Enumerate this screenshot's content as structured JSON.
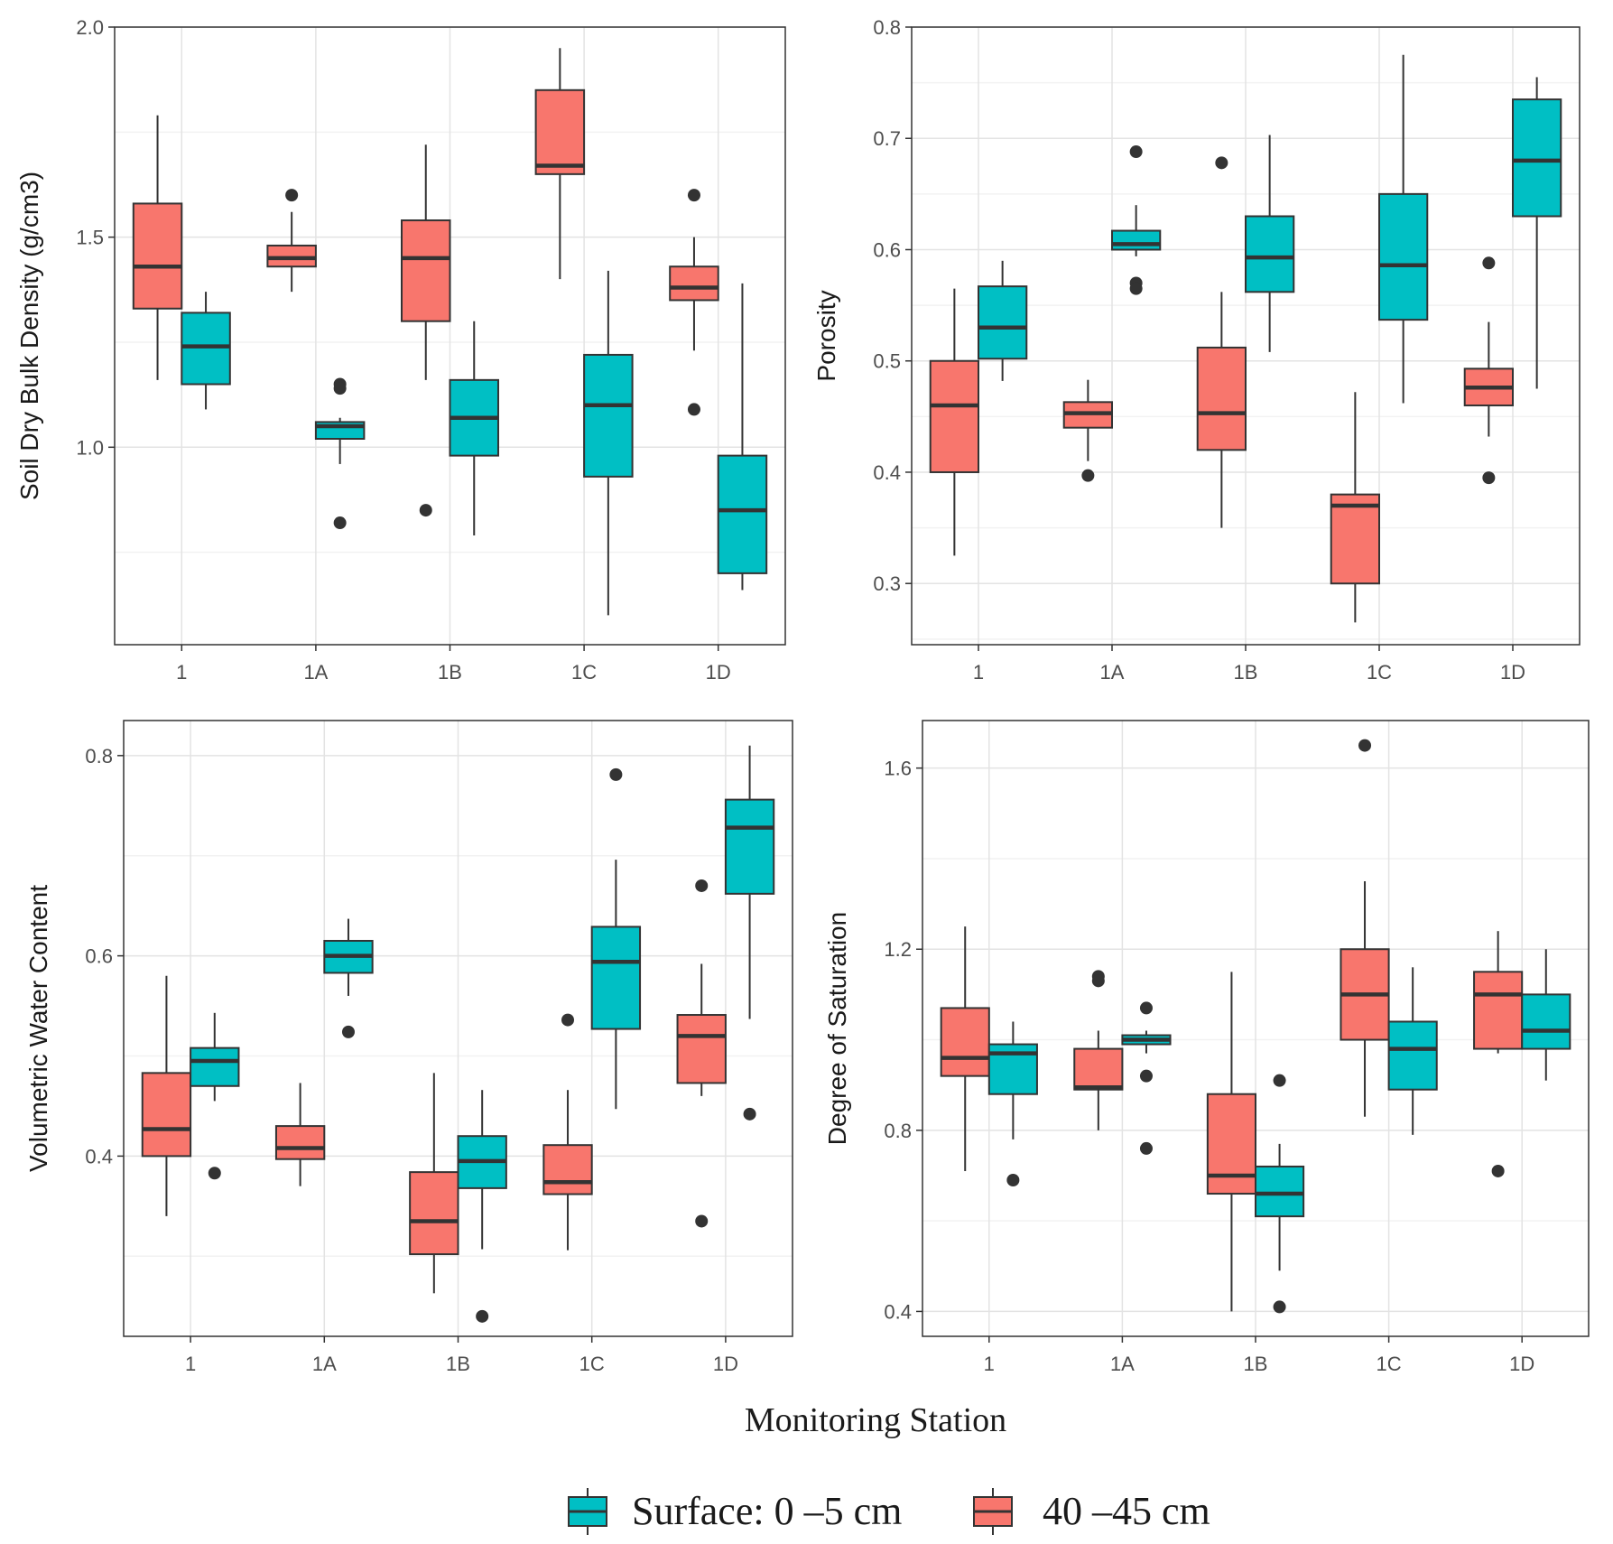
{
  "colors": {
    "surface": "#00BFC4",
    "deep": "#F8766D",
    "outline": "#333333",
    "grid_major": "#e3e3e3",
    "grid_minor": "#f2f2f2",
    "panel_border": "#333333"
  },
  "common_xlabel": "Monitoring Station",
  "legend": {
    "items": [
      {
        "key": "surface",
        "label": "Surface: 0 –5 cm"
      },
      {
        "key": "deep",
        "label": "40 –45 cm"
      }
    ]
  },
  "chart_data": [
    {
      "type": "box",
      "title": "",
      "xlabel": "",
      "ylabel": "Soil Dry Bulk Density (g/cm3)",
      "categories": [
        "1",
        "1A",
        "1B",
        "1C",
        "1D"
      ],
      "ylim": [
        0.53,
        2.0
      ],
      "yticks": [
        1.0,
        1.5,
        2.0
      ],
      "ytick_labels": [
        "1.0",
        "1.5",
        "2.0"
      ],
      "series": [
        {
          "key": "deep",
          "boxes": [
            {
              "whislo": 1.16,
              "q1": 1.33,
              "med": 1.43,
              "q3": 1.58,
              "whishi": 1.79,
              "fliers": []
            },
            {
              "whislo": 1.37,
              "q1": 1.43,
              "med": 1.45,
              "q3": 1.48,
              "whishi": 1.56,
              "fliers": [
                1.6
              ]
            },
            {
              "whislo": 1.16,
              "q1": 1.3,
              "med": 1.45,
              "q3": 1.54,
              "whishi": 1.72,
              "fliers": [
                0.85
              ]
            },
            {
              "whislo": 1.4,
              "q1": 1.65,
              "med": 1.67,
              "q3": 1.85,
              "whishi": 1.95,
              "fliers": []
            },
            {
              "whislo": 1.23,
              "q1": 1.35,
              "med": 1.38,
              "q3": 1.43,
              "whishi": 1.5,
              "fliers": [
                1.6,
                1.09
              ]
            }
          ]
        },
        {
          "key": "surface",
          "boxes": [
            {
              "whislo": 1.09,
              "q1": 1.15,
              "med": 1.24,
              "q3": 1.32,
              "whishi": 1.37,
              "fliers": []
            },
            {
              "whislo": 0.96,
              "q1": 1.02,
              "med": 1.05,
              "q3": 1.06,
              "whishi": 1.07,
              "fliers": [
                1.15,
                1.14,
                0.82
              ]
            },
            {
              "whislo": 0.79,
              "q1": 0.98,
              "med": 1.07,
              "q3": 1.16,
              "whishi": 1.3,
              "fliers": []
            },
            {
              "whislo": 0.6,
              "q1": 0.93,
              "med": 1.1,
              "q3": 1.22,
              "whishi": 1.42,
              "fliers": []
            },
            {
              "whislo": 0.66,
              "q1": 0.7,
              "med": 0.85,
              "q3": 0.98,
              "whishi": 1.39,
              "fliers": []
            }
          ]
        }
      ]
    },
    {
      "type": "box",
      "title": "",
      "xlabel": "",
      "ylabel": "Porosity",
      "categories": [
        "1",
        "1A",
        "1B",
        "1C",
        "1D"
      ],
      "ylim": [
        0.245,
        0.8
      ],
      "yticks": [
        0.3,
        0.4,
        0.5,
        0.6,
        0.7,
        0.8
      ],
      "ytick_labels": [
        "0.3",
        "0.4",
        "0.5",
        "0.6",
        "0.7",
        "0.8"
      ],
      "series": [
        {
          "key": "deep",
          "boxes": [
            {
              "whislo": 0.325,
              "q1": 0.4,
              "med": 0.46,
              "q3": 0.5,
              "whishi": 0.565,
              "fliers": []
            },
            {
              "whislo": 0.41,
              "q1": 0.44,
              "med": 0.453,
              "q3": 0.463,
              "whishi": 0.483,
              "fliers": [
                0.397
              ]
            },
            {
              "whislo": 0.35,
              "q1": 0.42,
              "med": 0.453,
              "q3": 0.512,
              "whishi": 0.562,
              "fliers": [
                0.678
              ]
            },
            {
              "whislo": 0.265,
              "q1": 0.3,
              "med": 0.37,
              "q3": 0.38,
              "whishi": 0.472,
              "fliers": []
            },
            {
              "whislo": 0.432,
              "q1": 0.46,
              "med": 0.476,
              "q3": 0.493,
              "whishi": 0.535,
              "fliers": [
                0.588,
                0.395
              ]
            }
          ]
        },
        {
          "key": "surface",
          "boxes": [
            {
              "whislo": 0.482,
              "q1": 0.502,
              "med": 0.53,
              "q3": 0.567,
              "whishi": 0.59,
              "fliers": []
            },
            {
              "whislo": 0.594,
              "q1": 0.6,
              "med": 0.605,
              "q3": 0.617,
              "whishi": 0.64,
              "fliers": [
                0.688,
                0.57,
                0.565
              ]
            },
            {
              "whislo": 0.508,
              "q1": 0.562,
              "med": 0.593,
              "q3": 0.63,
              "whishi": 0.703,
              "fliers": []
            },
            {
              "whislo": 0.462,
              "q1": 0.537,
              "med": 0.586,
              "q3": 0.65,
              "whishi": 0.775,
              "fliers": []
            },
            {
              "whislo": 0.475,
              "q1": 0.63,
              "med": 0.68,
              "q3": 0.735,
              "whishi": 0.755,
              "fliers": []
            }
          ]
        }
      ]
    },
    {
      "type": "box",
      "title": "",
      "xlabel": "",
      "ylabel": "Volumetric Water Content",
      "categories": [
        "1",
        "1A",
        "1B",
        "1C",
        "1D"
      ],
      "ylim": [
        0.22,
        0.835
      ],
      "yticks": [
        0.4,
        0.6,
        0.8
      ],
      "ytick_labels": [
        "0.4",
        "0.6",
        "0.8"
      ],
      "series": [
        {
          "key": "deep",
          "boxes": [
            {
              "whislo": 0.34,
              "q1": 0.4,
              "med": 0.427,
              "q3": 0.483,
              "whishi": 0.58,
              "fliers": []
            },
            {
              "whislo": 0.37,
              "q1": 0.397,
              "med": 0.408,
              "q3": 0.43,
              "whishi": 0.473,
              "fliers": []
            },
            {
              "whislo": 0.263,
              "q1": 0.302,
              "med": 0.335,
              "q3": 0.384,
              "whishi": 0.483,
              "fliers": []
            },
            {
              "whislo": 0.306,
              "q1": 0.362,
              "med": 0.374,
              "q3": 0.411,
              "whishi": 0.466,
              "fliers": [
                0.536
              ]
            },
            {
              "whislo": 0.46,
              "q1": 0.473,
              "med": 0.52,
              "q3": 0.541,
              "whishi": 0.592,
              "fliers": [
                0.67,
                0.335
              ]
            }
          ]
        },
        {
          "key": "surface",
          "boxes": [
            {
              "whislo": 0.455,
              "q1": 0.47,
              "med": 0.495,
              "q3": 0.508,
              "whishi": 0.543,
              "fliers": [
                0.383
              ]
            },
            {
              "whislo": 0.56,
              "q1": 0.583,
              "med": 0.6,
              "q3": 0.615,
              "whishi": 0.637,
              "fliers": [
                0.524
              ]
            },
            {
              "whislo": 0.307,
              "q1": 0.368,
              "med": 0.395,
              "q3": 0.42,
              "whishi": 0.466,
              "fliers": [
                0.24
              ]
            },
            {
              "whislo": 0.447,
              "q1": 0.527,
              "med": 0.594,
              "q3": 0.629,
              "whishi": 0.696,
              "fliers": [
                0.781
              ]
            },
            {
              "whislo": 0.537,
              "q1": 0.662,
              "med": 0.728,
              "q3": 0.756,
              "whishi": 0.81,
              "fliers": [
                0.442
              ]
            }
          ]
        }
      ]
    },
    {
      "type": "box",
      "title": "",
      "xlabel": "",
      "ylabel": "Degree of Saturation",
      "categories": [
        "1",
        "1A",
        "1B",
        "1C",
        "1D"
      ],
      "ylim": [
        0.345,
        1.705
      ],
      "yticks": [
        0.4,
        0.8,
        1.2,
        1.6
      ],
      "ytick_labels": [
        "0.4",
        "0.8",
        "1.2",
        "1.6"
      ],
      "series": [
        {
          "key": "deep",
          "boxes": [
            {
              "whislo": 0.71,
              "q1": 0.92,
              "med": 0.96,
              "q3": 1.07,
              "whishi": 1.25,
              "fliers": []
            },
            {
              "whislo": 0.8,
              "q1": 0.89,
              "med": 0.895,
              "q3": 0.98,
              "whishi": 1.02,
              "fliers": [
                1.14,
                1.13
              ]
            },
            {
              "whislo": 0.4,
              "q1": 0.66,
              "med": 0.7,
              "q3": 0.88,
              "whishi": 1.15,
              "fliers": []
            },
            {
              "whislo": 0.83,
              "q1": 1.0,
              "med": 1.1,
              "q3": 1.2,
              "whishi": 1.35,
              "fliers": [
                1.65
              ]
            },
            {
              "whislo": 0.97,
              "q1": 0.98,
              "med": 1.1,
              "q3": 1.15,
              "whishi": 1.24,
              "fliers": [
                0.71
              ]
            }
          ]
        },
        {
          "key": "surface",
          "boxes": [
            {
              "whislo": 0.78,
              "q1": 0.88,
              "med": 0.97,
              "q3": 0.99,
              "whishi": 1.04,
              "fliers": [
                0.69
              ]
            },
            {
              "whislo": 0.97,
              "q1": 0.99,
              "med": 1.0,
              "q3": 1.01,
              "whishi": 1.02,
              "fliers": [
                1.07,
                0.92,
                0.76
              ]
            },
            {
              "whislo": 0.49,
              "q1": 0.61,
              "med": 0.66,
              "q3": 0.72,
              "whishi": 0.77,
              "fliers": [
                0.91,
                0.41
              ]
            },
            {
              "whislo": 0.79,
              "q1": 0.89,
              "med": 0.98,
              "q3": 1.04,
              "whishi": 1.16,
              "fliers": []
            },
            {
              "whislo": 0.91,
              "q1": 0.98,
              "med": 1.02,
              "q3": 1.1,
              "whishi": 1.2,
              "fliers": []
            }
          ]
        }
      ]
    }
  ]
}
